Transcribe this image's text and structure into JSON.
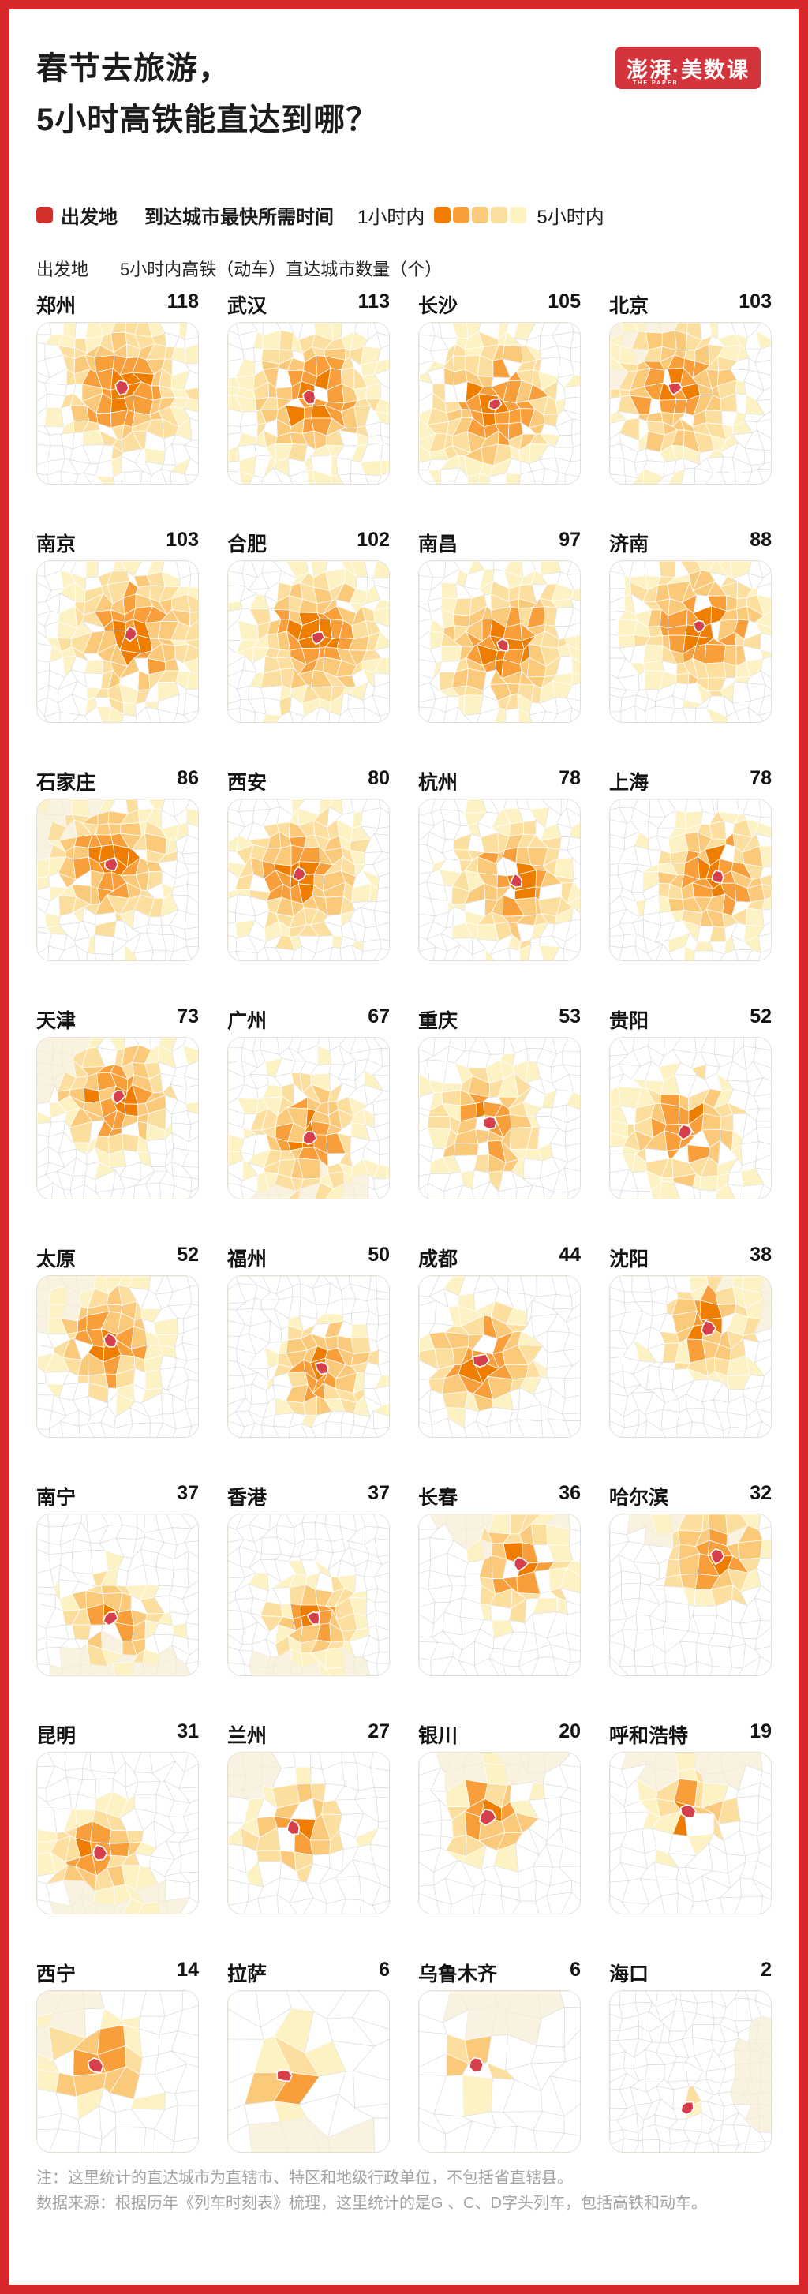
{
  "page": {
    "title_line1": "春节去旅游，",
    "title_line2": "5小时高铁能直达到哪？",
    "frame_color": "#D7282C",
    "logo": {
      "text": "澎湃·美数课",
      "subtext": "THE PAPER",
      "bg": "#D4353C"
    }
  },
  "legend": {
    "origin_label": "出发地",
    "origin_color": "#D0312D",
    "time_label": "到达城市最快所需时间",
    "scale_start": "1小时内",
    "scale_end": "5小时内",
    "scale_colors": [
      "#EF7D00",
      "#F89E3B",
      "#FAC97A",
      "#FCDF9E",
      "#FDF2C4"
    ]
  },
  "subheader": {
    "left": "出发地",
    "right": "5小时内高铁（动车）直达城市数量（个）"
  },
  "map_style": {
    "origin_fill": "#D5404C",
    "land_fill": "#FFFFFF",
    "land_stroke": "#D8D8D8",
    "outside_fill": "#F9F2E1",
    "outside_stroke": "#F0E8D4",
    "colored_stroke": "#FFFFFF"
  },
  "chart_data": {
    "type": "map-grid",
    "metric": "5小时内高铁（动车）直达城市数量",
    "unit": "个",
    "time_scale": {
      "min_label": "1小时内",
      "max_label": "5小时内",
      "steps": 5
    },
    "cities": [
      {
        "name": "郑州",
        "count": 118,
        "center": [
          0.52,
          0.4
        ],
        "n": 13,
        "cream": null
      },
      {
        "name": "武汉",
        "count": 113,
        "center": [
          0.5,
          0.46
        ],
        "n": 13,
        "cream": null
      },
      {
        "name": "长沙",
        "count": 105,
        "center": [
          0.47,
          0.5
        ],
        "n": 13,
        "cream": null
      },
      {
        "name": "北京",
        "count": 103,
        "center": [
          0.4,
          0.4
        ],
        "n": 13,
        "cream": "tl"
      },
      {
        "name": "南京",
        "count": 103,
        "center": [
          0.58,
          0.45
        ],
        "n": 13,
        "cream": null
      },
      {
        "name": "合肥",
        "count": 102,
        "center": [
          0.55,
          0.47
        ],
        "n": 13,
        "cream": null
      },
      {
        "name": "南昌",
        "count": 97,
        "center": [
          0.52,
          0.52
        ],
        "n": 13,
        "cream": null
      },
      {
        "name": "济南",
        "count": 88,
        "center": [
          0.55,
          0.4
        ],
        "n": 13,
        "cream": null
      },
      {
        "name": "石家庄",
        "count": 86,
        "center": [
          0.45,
          0.4
        ],
        "n": 13,
        "cream": "tl"
      },
      {
        "name": "西安",
        "count": 80,
        "center": [
          0.44,
          0.46
        ],
        "n": 13,
        "cream": null
      },
      {
        "name": "杭州",
        "count": 78,
        "center": [
          0.6,
          0.5
        ],
        "n": 13,
        "cream": null
      },
      {
        "name": "上海",
        "count": 78,
        "center": [
          0.66,
          0.48
        ],
        "n": 13,
        "cream": null
      },
      {
        "name": "天津",
        "count": 73,
        "center": [
          0.5,
          0.36
        ],
        "n": 13,
        "cream": "tl"
      },
      {
        "name": "广州",
        "count": 67,
        "center": [
          0.5,
          0.62
        ],
        "n": 13,
        "cream": "b"
      },
      {
        "name": "重庆",
        "count": 53,
        "center": [
          0.44,
          0.52
        ],
        "n": 12,
        "cream": null
      },
      {
        "name": "贵阳",
        "count": 52,
        "center": [
          0.46,
          0.58
        ],
        "n": 12,
        "cream": null
      },
      {
        "name": "太原",
        "count": 52,
        "center": [
          0.45,
          0.4
        ],
        "n": 12,
        "cream": "tl"
      },
      {
        "name": "福州",
        "count": 50,
        "center": [
          0.58,
          0.56
        ],
        "n": 13,
        "cream": null
      },
      {
        "name": "成都",
        "count": 44,
        "center": [
          0.38,
          0.52
        ],
        "n": 11,
        "cream": null
      },
      {
        "name": "沈阳",
        "count": 38,
        "center": [
          0.6,
          0.32
        ],
        "n": 12,
        "cream": "tr"
      },
      {
        "name": "南宁",
        "count": 37,
        "center": [
          0.45,
          0.64
        ],
        "n": 12,
        "cream": "b"
      },
      {
        "name": "香港",
        "count": 37,
        "center": [
          0.53,
          0.64
        ],
        "n": 13,
        "cream": "b"
      },
      {
        "name": "长春",
        "count": 36,
        "center": [
          0.62,
          0.3
        ],
        "n": 11,
        "cream": "t"
      },
      {
        "name": "哈尔滨",
        "count": 32,
        "center": [
          0.66,
          0.26
        ],
        "n": 11,
        "cream": "t"
      },
      {
        "name": "昆明",
        "count": 31,
        "center": [
          0.38,
          0.62
        ],
        "n": 11,
        "cream": "b"
      },
      {
        "name": "兰州",
        "count": 27,
        "center": [
          0.4,
          0.46
        ],
        "n": 10,
        "cream": "tl"
      },
      {
        "name": "银川",
        "count": 20,
        "center": [
          0.42,
          0.4
        ],
        "n": 10,
        "cream": "t"
      },
      {
        "name": "呼和浩特",
        "count": 19,
        "center": [
          0.48,
          0.36
        ],
        "n": 10,
        "cream": "t"
      },
      {
        "name": "西宁",
        "count": 14,
        "center": [
          0.36,
          0.46
        ],
        "n": 8,
        "cream": "tl"
      },
      {
        "name": "拉萨",
        "count": 6,
        "center": [
          0.35,
          0.52
        ],
        "n": 6,
        "cream": "b"
      },
      {
        "name": "乌鲁木齐",
        "count": 6,
        "center": [
          0.35,
          0.45
        ],
        "n": 7,
        "cream": "t"
      },
      {
        "name": "海口",
        "count": 2,
        "center": [
          0.48,
          0.72
        ],
        "n": 13,
        "cream": "r"
      }
    ]
  },
  "footer": {
    "note1": "注：这里统计的直达城市为直辖市、特区和地级行政单位，不包括省直辖县。",
    "note2": "数据来源：根据历年《列车时刻表》梳理，这里统计的是G 、C、D字头列车，包括高铁和动车。"
  }
}
